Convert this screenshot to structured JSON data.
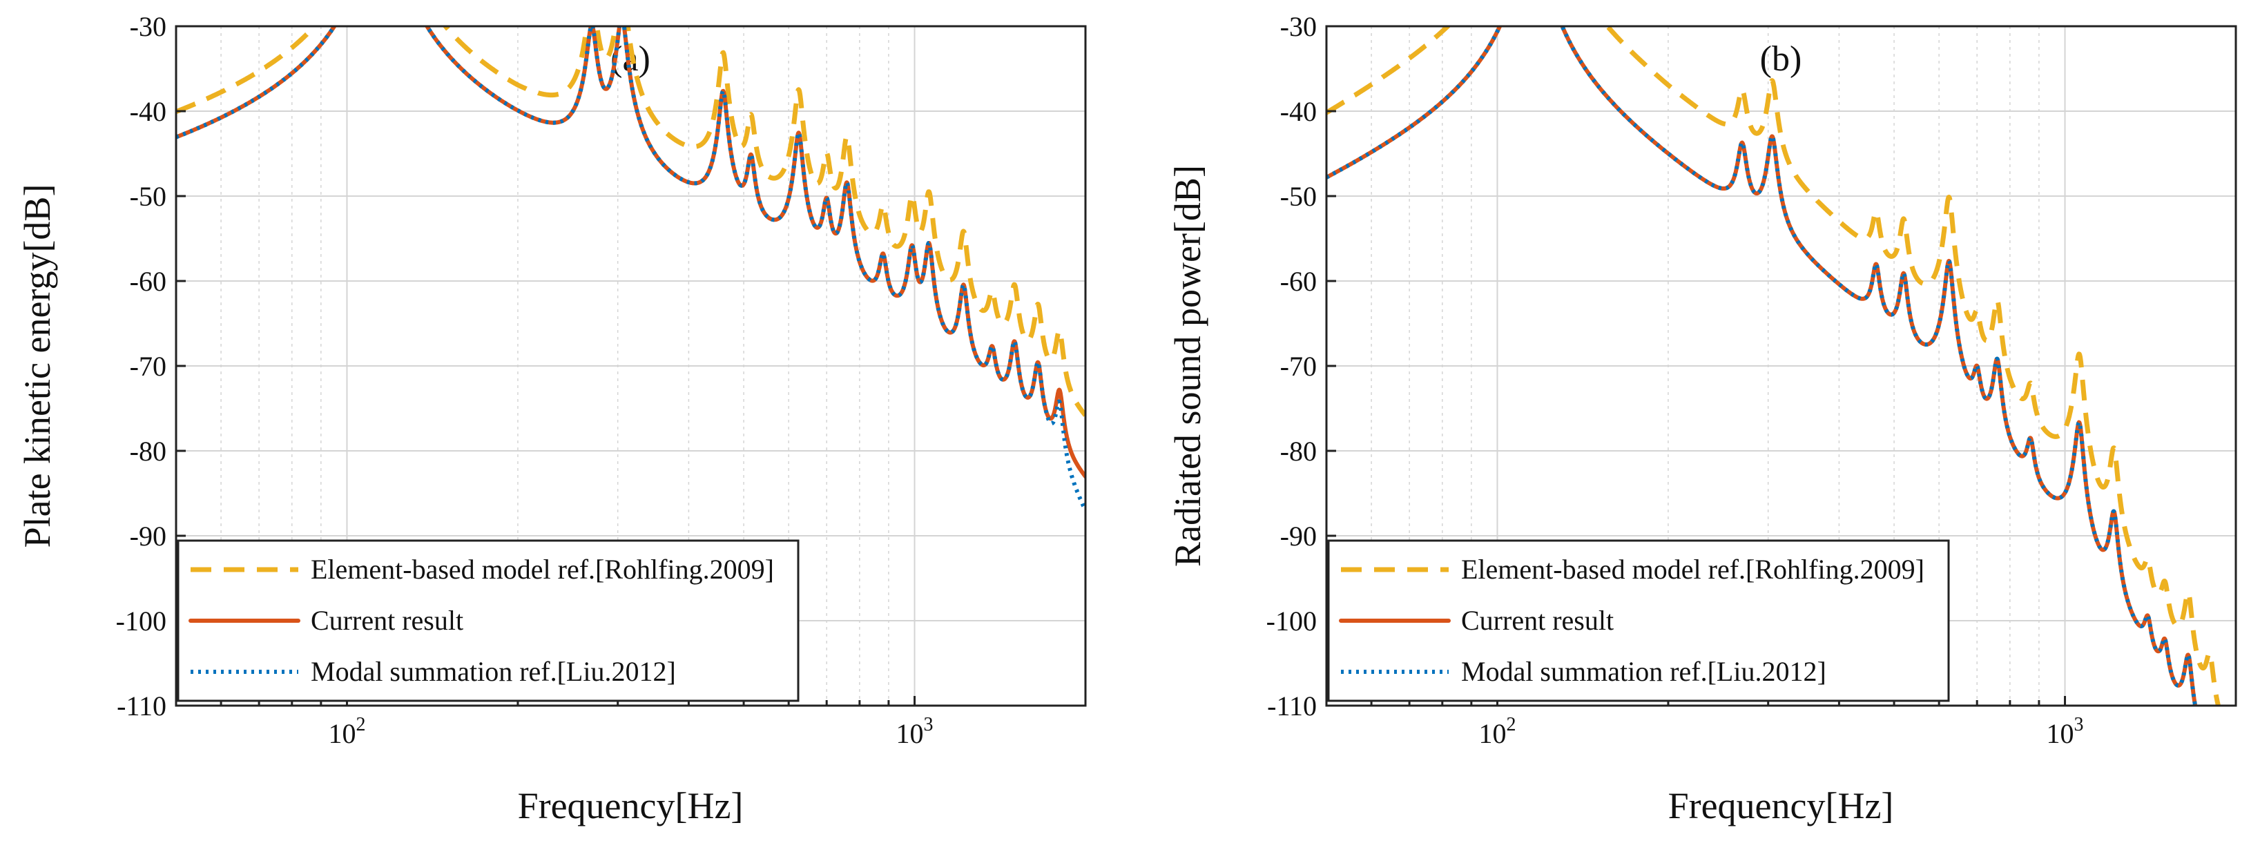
{
  "colors": {
    "element_based": "#EDB120",
    "current": "#D95319",
    "modal": "#0072BD"
  },
  "chart_data": [
    {
      "type": "line",
      "panel_label": "(a)",
      "xscale": "log",
      "xlim": [
        50,
        2000
      ],
      "ylim": [
        -110,
        -30
      ],
      "xlabel": "Frequency[Hz]",
      "ylabel": "Plate kinetic energy[dB]",
      "yticks": [
        -30,
        -40,
        -50,
        -60,
        -70,
        -80,
        -90,
        -100,
        -110
      ],
      "xticks": [
        {
          "value": 100,
          "base": "10",
          "exp": "2"
        },
        {
          "value": 1000,
          "base": "10",
          "exp": "3"
        }
      ],
      "grid": true,
      "legend_position": "bottom-left",
      "baseline": {
        "a": -47.2,
        "b": 12.8,
        "c": -6.8
      },
      "resonances": [
        {
          "f": 115,
          "h": 33,
          "q": 16
        },
        {
          "f": 270,
          "h": 20,
          "q": 30
        },
        {
          "f": 305,
          "h": 22,
          "q": 30
        },
        {
          "f": 460,
          "h": 17,
          "q": 35
        },
        {
          "f": 515,
          "h": 10,
          "q": 35
        },
        {
          "f": 625,
          "h": 16,
          "q": 35
        },
        {
          "f": 700,
          "h": 9,
          "q": 35
        },
        {
          "f": 760,
          "h": 13,
          "q": 35
        },
        {
          "f": 880,
          "h": 6,
          "q": 35
        },
        {
          "f": 990,
          "h": 10,
          "q": 35
        },
        {
          "f": 1060,
          "h": 12,
          "q": 35
        },
        {
          "f": 1220,
          "h": 10,
          "q": 35
        },
        {
          "f": 1370,
          "h": 4,
          "q": 35
        },
        {
          "f": 1500,
          "h": 8,
          "q": 35
        },
        {
          "f": 1650,
          "h": 8,
          "q": 35
        },
        {
          "f": 1800,
          "h": 7,
          "q": 35
        }
      ],
      "series": [
        {
          "name": "Element-based model ref.[Rohlfing.2009]",
          "style": "dashed",
          "color_key": "element_based",
          "offset": 3.0,
          "taper": 0.7,
          "peak_scale": 1.0
        },
        {
          "name": "Current result",
          "style": "solid",
          "color_key": "current",
          "offset": 0,
          "taper": 0,
          "peak_scale": 1.0
        },
        {
          "name": "Modal summation ref.[Liu.2012]",
          "style": "dotted",
          "color_key": "modal",
          "offset": 0,
          "taper": 0,
          "peak_scale": 1.0,
          "tail_drop": 4
        }
      ]
    },
    {
      "type": "line",
      "panel_label": "(b)",
      "xscale": "log",
      "xlim": [
        50,
        2000
      ],
      "ylim": [
        -110,
        -30
      ],
      "xlabel": "Frequency[Hz]",
      "ylabel": "Radiated sound power[dB]",
      "yticks": [
        -30,
        -40,
        -50,
        -60,
        -70,
        -80,
        -90,
        -100,
        -110
      ],
      "xticks": [
        {
          "value": 100,
          "base": "10",
          "exp": "2"
        },
        {
          "value": 1000,
          "base": "10",
          "exp": "3"
        }
      ],
      "grid": true,
      "legend_position": "bottom-left",
      "baseline": {
        "a": -51.5,
        "b": 28,
        "c": -11
      },
      "resonances": [
        {
          "f": 115,
          "h": 33,
          "q": 14
        },
        {
          "f": 270,
          "h": 13,
          "q": 30
        },
        {
          "f": 305,
          "h": 16,
          "q": 30
        },
        {
          "f": 465,
          "h": 8,
          "q": 35
        },
        {
          "f": 520,
          "h": 10,
          "q": 35
        },
        {
          "f": 625,
          "h": 17,
          "q": 35
        },
        {
          "f": 700,
          "h": 6,
          "q": 35
        },
        {
          "f": 760,
          "h": 11,
          "q": 35
        },
        {
          "f": 870,
          "h": 5,
          "q": 35
        },
        {
          "f": 1060,
          "h": 16,
          "q": 35
        },
        {
          "f": 1220,
          "h": 11,
          "q": 35
        },
        {
          "f": 1400,
          "h": 3,
          "q": 35
        },
        {
          "f": 1500,
          "h": 4,
          "q": 35
        },
        {
          "f": 1650,
          "h": 8,
          "q": 35
        },
        {
          "f": 1800,
          "h": 5,
          "q": 35
        }
      ],
      "series": [
        {
          "name": "Element-based model ref.[Rohlfing.2009]",
          "style": "dashed",
          "color_key": "element_based",
          "offset": 3.5,
          "taper": 0.5,
          "peak_scale": 1.15
        },
        {
          "name": "Current result",
          "style": "solid",
          "color_key": "current",
          "offset": 0,
          "taper": 0,
          "peak_scale": 1.0
        },
        {
          "name": "Modal summation ref.[Liu.2012]",
          "style": "dotted",
          "color_key": "modal",
          "offset": 0,
          "taper": 0,
          "peak_scale": 1.0,
          "tail_drop": 2
        }
      ]
    }
  ]
}
